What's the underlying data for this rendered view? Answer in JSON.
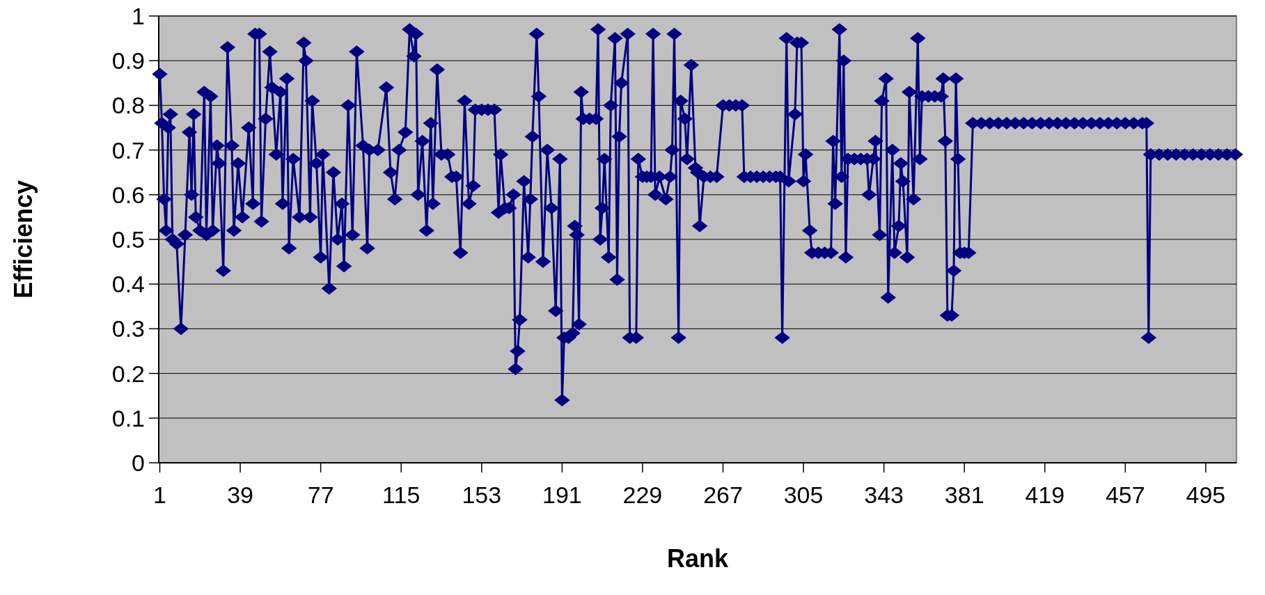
{
  "chart_data": {
    "type": "line",
    "xlabel": "Rank",
    "ylabel": "Efficiency",
    "xlim": [
      0.5,
      509.5
    ],
    "ylim": [
      0,
      1
    ],
    "xticks": [
      1,
      39,
      77,
      115,
      153,
      191,
      229,
      267,
      305,
      343,
      381,
      419,
      457,
      495
    ],
    "yticks": [
      0,
      0.1,
      0.2,
      0.3,
      0.4,
      0.5,
      0.6,
      0.7,
      0.8,
      0.9,
      1
    ],
    "grid": "y",
    "marker": "diamond",
    "x": [
      1,
      2,
      3,
      4,
      5,
      6,
      7,
      9,
      11,
      13,
      15,
      16,
      17,
      18,
      20,
      22,
      23,
      25,
      26,
      28,
      29,
      31,
      33,
      35,
      36,
      38,
      40,
      43,
      45,
      46,
      48,
      49,
      51,
      53,
      54,
      56,
      58,
      59,
      61,
      62,
      64,
      67,
      69,
      70,
      72,
      73,
      75,
      77,
      78,
      81,
      83,
      85,
      87,
      88,
      90,
      92,
      94,
      97,
      99,
      100,
      104,
      108,
      110,
      112,
      114,
      117,
      119,
      121,
      122,
      123,
      125,
      127,
      129,
      130,
      132,
      134,
      137,
      139,
      141,
      143,
      145,
      147,
      149,
      150,
      153,
      156,
      159,
      161,
      162,
      164,
      166,
      168,
      169,
      170,
      171,
      173,
      175,
      176,
      177,
      179,
      180,
      182,
      184,
      186,
      188,
      190,
      191,
      192,
      194,
      196,
      197,
      198,
      199,
      200,
      201,
      204,
      207,
      208,
      209,
      210,
      211,
      213,
      214,
      216,
      217,
      218,
      219,
      222,
      223,
      226,
      227,
      229,
      231,
      233,
      234,
      235,
      237,
      240,
      242,
      243,
      244,
      246,
      247,
      249,
      250,
      252,
      254,
      255,
      256,
      258,
      261,
      264,
      267,
      270,
      273,
      276,
      277,
      280,
      283,
      286,
      289,
      292,
      294,
      295,
      297,
      298,
      301,
      302,
      304,
      305,
      306,
      308,
      309,
      312,
      315,
      318,
      319,
      320,
      322,
      323,
      324,
      325,
      326,
      329,
      332,
      335,
      336,
      338,
      339,
      341,
      342,
      344,
      345,
      347,
      348,
      350,
      351,
      352,
      354,
      355,
      357,
      359,
      360,
      361,
      364,
      367,
      370,
      371,
      372,
      373,
      375,
      376,
      377,
      378,
      379,
      381,
      383,
      385,
      389,
      393,
      397,
      401,
      405,
      409,
      413,
      417,
      421,
      425,
      429,
      433,
      437,
      441,
      445,
      449,
      453,
      457,
      461,
      465,
      467,
      468,
      469,
      473,
      477,
      481,
      485,
      489,
      493,
      497,
      501,
      505,
      509
    ],
    "series": [
      {
        "color": "#000080",
        "values": [
          0.87,
          0.76,
          0.59,
          0.52,
          0.75,
          0.78,
          0.5,
          0.49,
          0.3,
          0.51,
          0.74,
          0.6,
          0.78,
          0.55,
          0.52,
          0.83,
          0.51,
          0.82,
          0.52,
          0.71,
          0.67,
          0.43,
          0.93,
          0.71,
          0.52,
          0.67,
          0.55,
          0.75,
          0.58,
          0.96,
          0.96,
          0.54,
          0.77,
          0.92,
          0.84,
          0.69,
          0.83,
          0.58,
          0.86,
          0.48,
          0.68,
          0.55,
          0.94,
          0.9,
          0.55,
          0.81,
          0.67,
          0.46,
          0.69,
          0.39,
          0.65,
          0.5,
          0.58,
          0.44,
          0.8,
          0.51,
          0.92,
          0.71,
          0.48,
          0.7,
          0.7,
          0.84,
          0.65,
          0.59,
          0.7,
          0.74,
          0.97,
          0.91,
          0.96,
          0.6,
          0.72,
          0.52,
          0.76,
          0.58,
          0.88,
          0.69,
          0.69,
          0.64,
          0.64,
          0.47,
          0.81,
          0.58,
          0.62,
          0.79,
          0.79,
          0.79,
          0.79,
          0.56,
          0.69,
          0.57,
          0.57,
          0.6,
          0.21,
          0.25,
          0.32,
          0.63,
          0.46,
          0.59,
          0.73,
          0.96,
          0.82,
          0.45,
          0.7,
          0.57,
          0.34,
          0.68,
          0.14,
          0.28,
          0.28,
          0.29,
          0.53,
          0.51,
          0.31,
          0.83,
          0.77,
          0.77,
          0.77,
          0.97,
          0.5,
          0.57,
          0.68,
          0.46,
          0.8,
          0.95,
          0.41,
          0.73,
          0.85,
          0.96,
          0.28,
          0.28,
          0.68,
          0.64,
          0.64,
          0.64,
          0.96,
          0.6,
          0.64,
          0.59,
          0.64,
          0.7,
          0.96,
          0.28,
          0.81,
          0.77,
          0.68,
          0.89,
          0.66,
          0.65,
          0.53,
          0.64,
          0.64,
          0.64,
          0.8,
          0.8,
          0.8,
          0.8,
          0.64,
          0.64,
          0.64,
          0.64,
          0.64,
          0.64,
          0.64,
          0.28,
          0.95,
          0.63,
          0.78,
          0.94,
          0.94,
          0.63,
          0.69,
          0.52,
          0.47,
          0.47,
          0.47,
          0.47,
          0.72,
          0.58,
          0.97,
          0.64,
          0.9,
          0.46,
          0.68,
          0.68,
          0.68,
          0.68,
          0.6,
          0.68,
          0.72,
          0.51,
          0.81,
          0.86,
          0.37,
          0.7,
          0.47,
          0.53,
          0.67,
          0.63,
          0.46,
          0.83,
          0.59,
          0.95,
          0.68,
          0.82,
          0.82,
          0.82,
          0.82,
          0.86,
          0.72,
          0.33,
          0.33,
          0.43,
          0.86,
          0.68,
          0.47,
          0.47,
          0.47,
          0.76,
          0.76,
          0.76,
          0.76,
          0.76,
          0.76,
          0.76,
          0.76,
          0.76,
          0.76,
          0.76,
          0.76,
          0.76,
          0.76,
          0.76,
          0.76,
          0.76,
          0.76,
          0.76,
          0.76,
          0.76,
          0.76,
          0.28,
          0.69,
          0.69,
          0.69,
          0.69,
          0.69,
          0.69,
          0.69,
          0.69,
          0.69,
          0.69,
          0.69
        ]
      }
    ]
  }
}
